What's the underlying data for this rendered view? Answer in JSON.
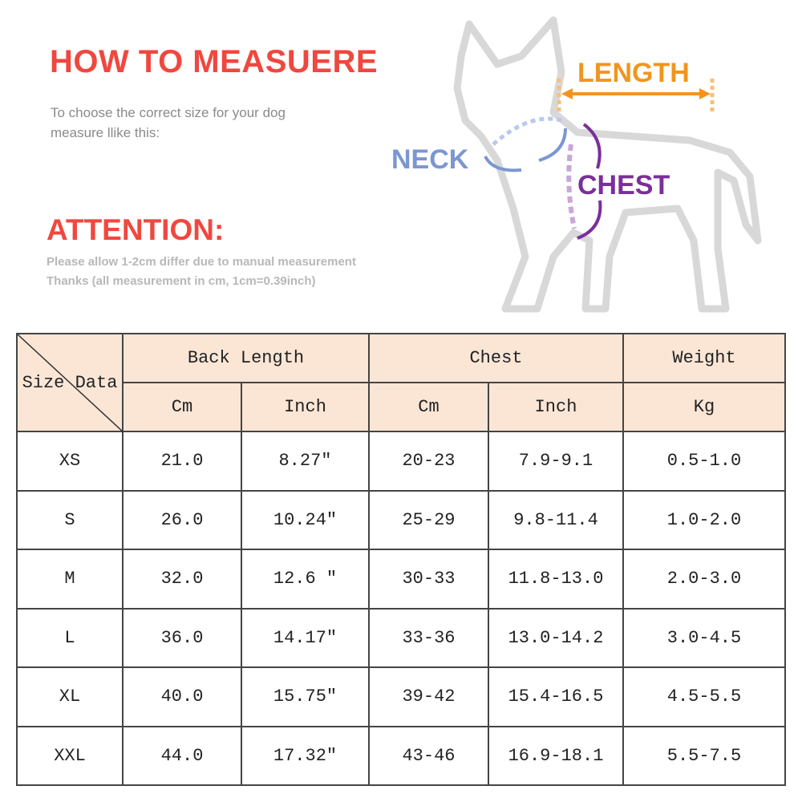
{
  "title": "HOW TO MEASUERE",
  "subtitle_lines": [
    "To choose the correct size for your dog",
    "measure llike this:"
  ],
  "attention": {
    "heading": "ATTENTION:",
    "lines": [
      "Please allow 1-2cm differ due to manual measurement",
      "Thanks (all measurement in cm, 1cm=0.39inch)"
    ]
  },
  "diagram": {
    "length": "LENGTH",
    "neck": "NECK",
    "chest": "CHEST",
    "colors": {
      "length": "#f0961e",
      "neck": "#7b96d2",
      "chest": "#7a2f9a",
      "title": "#f0473f"
    }
  },
  "table": {
    "corner": "Size Data",
    "groups": [
      "Back Length",
      "Chest",
      "Weight"
    ],
    "units": [
      "Cm",
      "Inch",
      "Cm",
      "Inch",
      "Kg"
    ],
    "rows": [
      [
        "XS",
        "21.0",
        "8.27″",
        "20-23",
        "7.9-9.1",
        "0.5-1.0"
      ],
      [
        "S",
        "26.0",
        "10.24″",
        "25-29",
        "9.8-11.4",
        "1.0-2.0"
      ],
      [
        "M",
        "32.0",
        "12.6 ″",
        "30-33",
        "11.8-13.0",
        "2.0-3.0"
      ],
      [
        "L",
        "36.0",
        "14.17″",
        "33-36",
        "13.0-14.2",
        "3.0-4.5"
      ],
      [
        "XL",
        "40.0",
        "15.75″",
        "39-42",
        "15.4-16.5",
        "4.5-5.5"
      ],
      [
        "XXL",
        "44.0",
        "17.32″",
        "43-46",
        "16.9-18.1",
        "5.5-7.5"
      ]
    ],
    "header_color": "#fbe6d6"
  }
}
